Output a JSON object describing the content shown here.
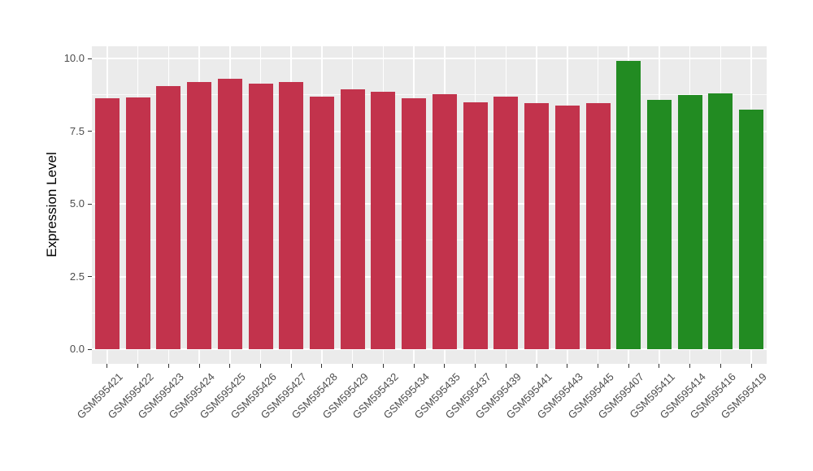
{
  "figure": {
    "background_color": "#FFFFFF",
    "panel_background_color": "#EBEBEB",
    "grid_color": "#FFFFFF",
    "tick_mark_color": "#333333",
    "axis_text_color": "#4D4D4D",
    "axis_title_color": "#000000"
  },
  "chart_data": {
    "type": "bar",
    "title": "",
    "xlabel": "",
    "ylabel": "Expression Level",
    "ylim": [
      0,
      10.43
    ],
    "yticks": [
      0.0,
      2.5,
      5.0,
      7.5,
      10.0
    ],
    "ytick_labels": [
      "0.0",
      "2.5",
      "5.0",
      "7.5",
      "10.0"
    ],
    "yticks_minor": [
      1.25,
      3.75,
      6.25,
      8.75
    ],
    "legend": "none",
    "grid": "white major and minor horizontal lines plus vertical category lines on gray panel",
    "x_tick_label_rotation_deg": 45,
    "categories": [
      "GSM595421",
      "GSM595422",
      "GSM595423",
      "GSM595424",
      "GSM595425",
      "GSM595426",
      "GSM595427",
      "GSM595428",
      "GSM595429",
      "GSM595432",
      "GSM595434",
      "GSM595435",
      "GSM595437",
      "GSM595439",
      "GSM595441",
      "GSM595443",
      "GSM595445",
      "GSM595407",
      "GSM595411",
      "GSM595414",
      "GSM595416",
      "GSM595419"
    ],
    "values": [
      8.62,
      8.65,
      9.04,
      9.2,
      9.31,
      9.14,
      9.19,
      8.69,
      8.93,
      8.86,
      8.64,
      8.78,
      8.48,
      8.7,
      8.45,
      8.37,
      8.45,
      9.93,
      8.58,
      8.74,
      8.79,
      8.23
    ],
    "colors": [
      "#C2334C",
      "#C2334C",
      "#C2334C",
      "#C2334C",
      "#C2334C",
      "#C2334C",
      "#C2334C",
      "#C2334C",
      "#C2334C",
      "#C2334C",
      "#C2334C",
      "#C2334C",
      "#C2334C",
      "#C2334C",
      "#C2334C",
      "#C2334C",
      "#C2334C",
      "#228B22",
      "#228B22",
      "#228B22",
      "#228B22",
      "#228B22"
    ],
    "group_colors": {
      "red": "#C2334C",
      "green": "#228B22"
    }
  }
}
